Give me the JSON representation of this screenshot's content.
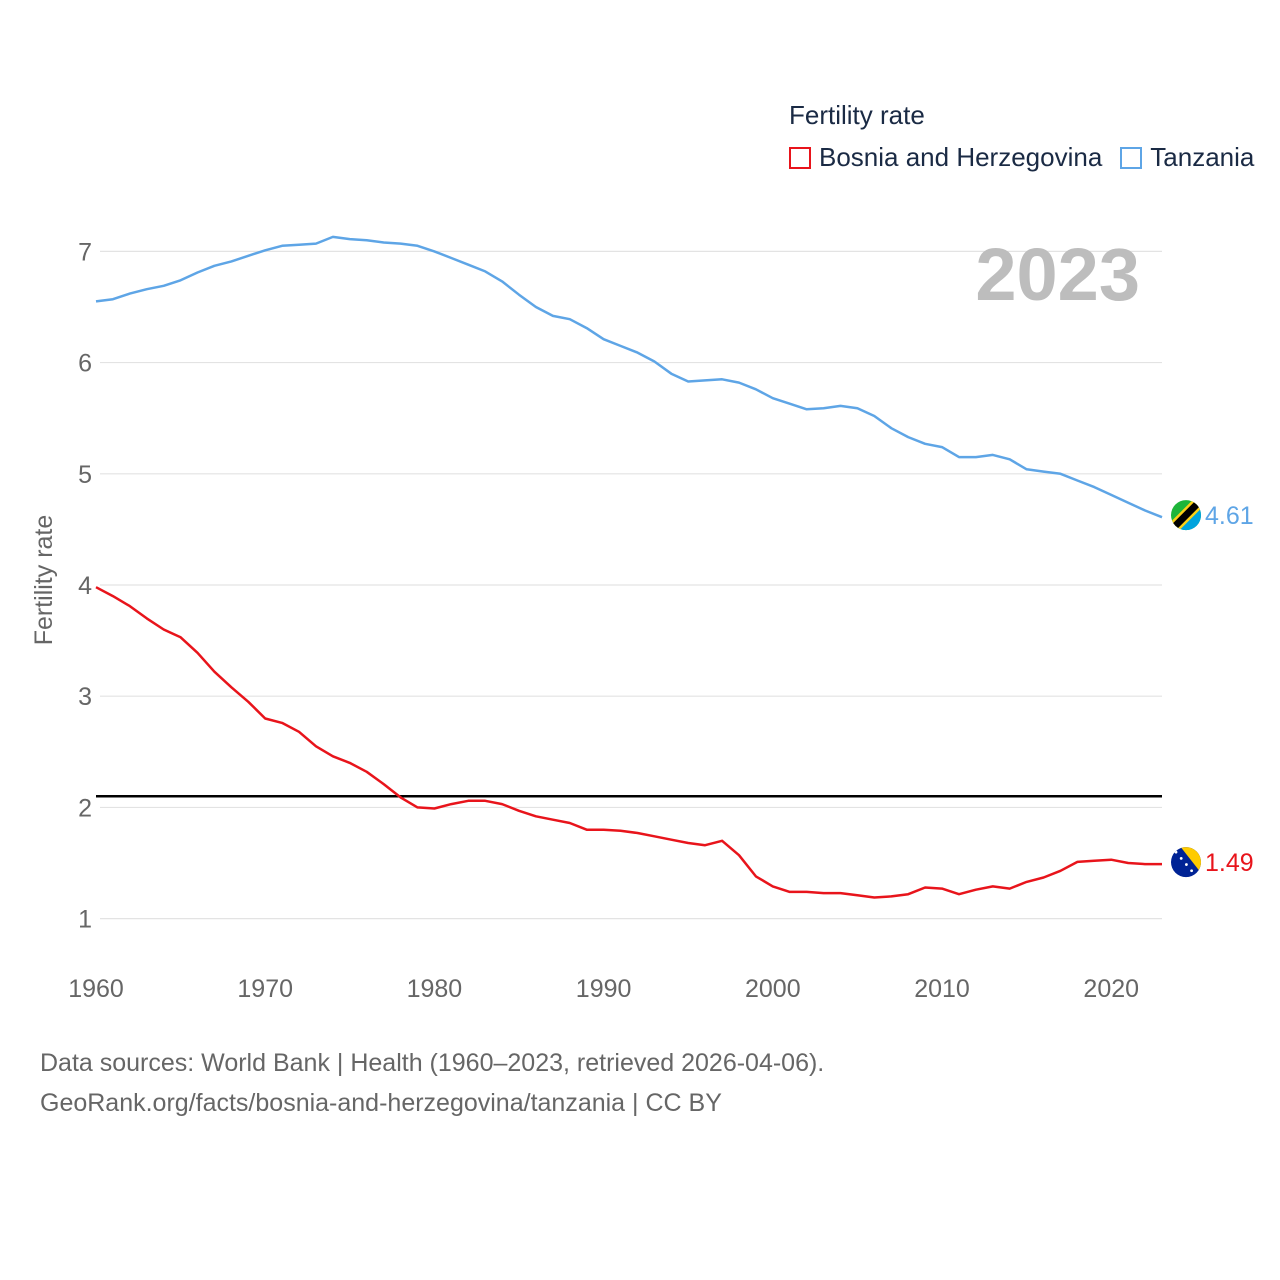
{
  "legend": {
    "title": "Fertility rate",
    "items": [
      {
        "label": "Bosnia and Herzegovina",
        "color": "#e8141b"
      },
      {
        "label": "Tanzania",
        "color": "#5ea5e6"
      }
    ]
  },
  "chart_data": {
    "type": "line",
    "year_label": "2023",
    "ylabel": "Fertility rate",
    "xlabel": "",
    "xlim": [
      1960,
      2023
    ],
    "ylim": [
      0.7,
      7.3
    ],
    "x_ticks": [
      1960,
      1970,
      1980,
      1990,
      2000,
      2010,
      2020
    ],
    "y_ticks": [
      1,
      2,
      3,
      4,
      5,
      6,
      7
    ],
    "reference_line": {
      "value": 2.1,
      "color": "#000000"
    },
    "series": [
      {
        "name": "Tanzania",
        "color": "#5ea5e6",
        "end_label": "4.61",
        "x": [
          1960,
          1961,
          1962,
          1963,
          1964,
          1965,
          1966,
          1967,
          1968,
          1969,
          1970,
          1971,
          1972,
          1973,
          1974,
          1975,
          1976,
          1977,
          1978,
          1979,
          1980,
          1981,
          1982,
          1983,
          1984,
          1985,
          1986,
          1987,
          1988,
          1989,
          1990,
          1991,
          1992,
          1993,
          1994,
          1995,
          1996,
          1997,
          1998,
          1999,
          2000,
          2001,
          2002,
          2003,
          2004,
          2005,
          2006,
          2007,
          2008,
          2009,
          2010,
          2011,
          2012,
          2013,
          2014,
          2015,
          2016,
          2017,
          2018,
          2019,
          2020,
          2021,
          2022,
          2023
        ],
        "values": [
          6.55,
          6.57,
          6.62,
          6.66,
          6.69,
          6.74,
          6.81,
          6.87,
          6.91,
          6.96,
          7.01,
          7.05,
          7.06,
          7.07,
          7.13,
          7.11,
          7.1,
          7.08,
          7.07,
          7.05,
          7.0,
          6.94,
          6.88,
          6.82,
          6.73,
          6.61,
          6.5,
          6.42,
          6.39,
          6.31,
          6.21,
          6.15,
          6.09,
          6.01,
          5.9,
          5.83,
          5.84,
          5.85,
          5.82,
          5.76,
          5.68,
          5.63,
          5.58,
          5.59,
          5.61,
          5.59,
          5.52,
          5.41,
          5.33,
          5.27,
          5.24,
          5.15,
          5.15,
          5.17,
          5.13,
          5.04,
          5.02,
          5.0,
          4.94,
          4.88,
          4.81,
          4.74,
          4.67,
          4.61
        ]
      },
      {
        "name": "Bosnia and Herzegovina",
        "color": "#e8141b",
        "end_label": "1.49",
        "x": [
          1960,
          1961,
          1962,
          1963,
          1964,
          1965,
          1966,
          1967,
          1968,
          1969,
          1970,
          1971,
          1972,
          1973,
          1974,
          1975,
          1976,
          1977,
          1978,
          1979,
          1980,
          1981,
          1982,
          1983,
          1984,
          1985,
          1986,
          1987,
          1988,
          1989,
          1990,
          1991,
          1992,
          1993,
          1994,
          1995,
          1996,
          1997,
          1998,
          1999,
          2000,
          2001,
          2002,
          2003,
          2004,
          2005,
          2006,
          2007,
          2008,
          2009,
          2010,
          2011,
          2012,
          2013,
          2014,
          2015,
          2016,
          2017,
          2018,
          2019,
          2020,
          2021,
          2022,
          2023
        ],
        "values": [
          3.98,
          3.9,
          3.81,
          3.7,
          3.6,
          3.53,
          3.39,
          3.22,
          3.08,
          2.95,
          2.8,
          2.76,
          2.68,
          2.55,
          2.46,
          2.4,
          2.32,
          2.21,
          2.09,
          2.0,
          1.99,
          2.03,
          2.06,
          2.06,
          2.03,
          1.97,
          1.92,
          1.89,
          1.86,
          1.8,
          1.8,
          1.79,
          1.77,
          1.74,
          1.71,
          1.68,
          1.66,
          1.7,
          1.57,
          1.38,
          1.29,
          1.24,
          1.24,
          1.23,
          1.23,
          1.21,
          1.19,
          1.2,
          1.22,
          1.28,
          1.27,
          1.22,
          1.26,
          1.29,
          1.27,
          1.33,
          1.37,
          1.43,
          1.51,
          1.52,
          1.53,
          1.5,
          1.49,
          1.49
        ]
      }
    ]
  },
  "source": {
    "line1": "Data sources: World Bank | Health (1960–2023, retrieved 2026-04-06).",
    "line2": "GeoRank.org/facts/bosnia-and-herzegovina/tanzania | CC BY"
  }
}
